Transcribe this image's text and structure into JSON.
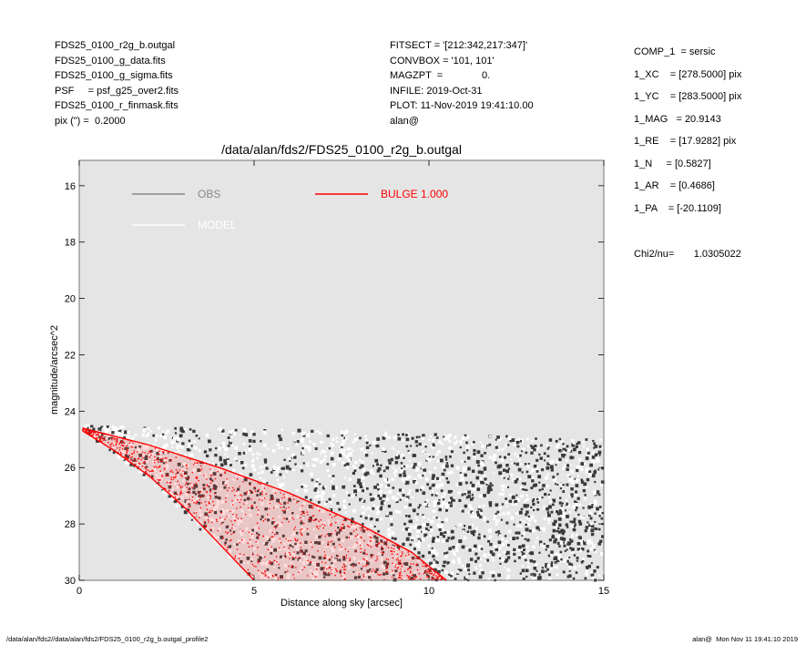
{
  "header_left": [
    "FDS25_0100_r2g_b.outgal",
    "FDS25_0100_g_data.fits",
    "FDS25_0100_g_sigma.fits",
    "PSF     = psf_g25_over2.fits",
    "FDS25_0100_r_finmask.fits",
    "pix (\") =  0.2000"
  ],
  "header_mid": [
    "FITSECT = '[212:342,217:347]'",
    "CONVBOX = '101, 101'",
    "MAGZPT  =              0.",
    "INFILE: 2019-Oct-31",
    "PLOT: 11-Nov-2019 19:41:10.00",
    "alan@"
  ],
  "params": [
    "COMP_1  = sersic",
    "1_XC    = [278.5000] pix",
    "1_YC    = [283.5000] pix",
    "1_MAG   = 20.9143",
    "1_RE    = [17.9282] pix",
    "1_N     = [0.5827]",
    "1_AR    = [0.4686]",
    "1_PA    = [-20.1109]"
  ],
  "chi2": "Chi2/nu=       1.0305022",
  "footer_left": "/data/alan/fds2//data/alan/fds2/FDS25_0100_r2g_b.outgal_profile2",
  "footer_right": "alan@  Mon Nov 11 19:41:10 2019",
  "colors": {
    "plot_bg": "#e5e5e5",
    "obs": "#888888",
    "model": "#ffffff",
    "bulge": "#ff0000",
    "data_dark": "#3a3a3a"
  },
  "chart_data": {
    "type": "scatter",
    "title": "/data/alan/fds2/FDS25_0100_r2g_b.outgal",
    "xlabel": "Distance along sky [arcsec]",
    "ylabel": "magnitude/arcsec^2",
    "xlim": [
      0,
      15
    ],
    "ylim": [
      30,
      15.1
    ],
    "y_inverted": true,
    "xticks": [
      0,
      5,
      10,
      15
    ],
    "yticks": [
      16,
      18,
      20,
      22,
      24,
      26,
      28,
      30
    ],
    "legend": [
      {
        "name": "OBS",
        "color": "#888888"
      },
      {
        "name": "MODEL",
        "color": "#ffffff"
      },
      {
        "name": "BULGE  1.000",
        "color": "#ff0000"
      }
    ],
    "legend_placement": "top",
    "series": [
      {
        "name": "OBS",
        "style": "scatter cloud",
        "envelope_upper": [
          [
            0.1,
            24.5
          ],
          [
            2,
            24.6
          ],
          [
            5,
            24.6
          ],
          [
            10,
            24.8
          ],
          [
            15,
            25.0
          ]
        ],
        "envelope_lower": [
          [
            0.1,
            24.7
          ],
          [
            2,
            26.5
          ],
          [
            5,
            30.0
          ],
          [
            15,
            30.0
          ]
        ]
      },
      {
        "name": "BULGE  1.000",
        "style": "dense band",
        "upper_edge": [
          [
            0.1,
            24.6
          ],
          [
            2,
            25.2
          ],
          [
            4,
            26.0
          ],
          [
            6,
            26.9
          ],
          [
            8,
            28.0
          ],
          [
            9.5,
            29.0
          ],
          [
            10.5,
            30.0
          ]
        ],
        "lower_edge": [
          [
            0.1,
            24.7
          ],
          [
            1,
            25.4
          ],
          [
            2,
            26.3
          ],
          [
            3,
            27.4
          ],
          [
            4,
            28.7
          ],
          [
            5,
            30.0
          ]
        ]
      }
    ]
  }
}
